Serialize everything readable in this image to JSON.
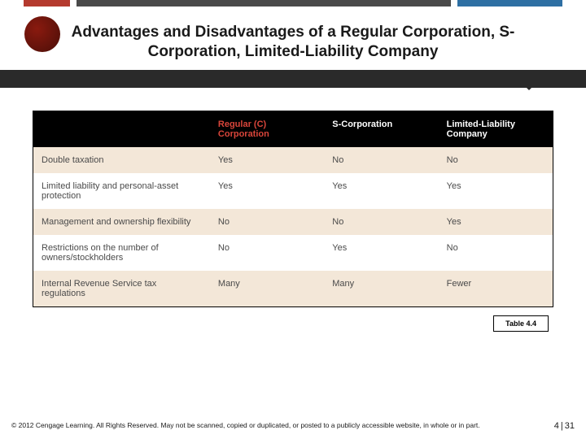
{
  "accent": {
    "segments": [
      {
        "color": "#ffffff",
        "width": "4%"
      },
      {
        "color": "#b43a2e",
        "width": "8%"
      },
      {
        "color": "#ffffff",
        "width": "1%"
      },
      {
        "color": "#4a4a4a",
        "width": "64%"
      },
      {
        "color": "#ffffff",
        "width": "1%"
      },
      {
        "color": "#2e6fa3",
        "width": "18%"
      },
      {
        "color": "#ffffff",
        "width": "4%"
      }
    ]
  },
  "title": "Advantages and Disadvantages of a Regular Corporation, S-Corporation, Limited-Liability Company",
  "table": {
    "columns": [
      {
        "label": "",
        "class": "hcol"
      },
      {
        "label": "Regular (C) Corporation",
        "class": "dcol reg"
      },
      {
        "label": "S-Corporation",
        "class": "dcol"
      },
      {
        "label": "Limited-Liability Company",
        "class": "dcol"
      }
    ],
    "rows": [
      {
        "alt": true,
        "cells": [
          "Double taxation",
          "Yes",
          "No",
          "No"
        ]
      },
      {
        "alt": false,
        "cells": [
          "Limited liability and personal-asset protection",
          "Yes",
          "Yes",
          "Yes"
        ]
      },
      {
        "alt": true,
        "cells": [
          "Management and ownership flexibility",
          "No",
          "No",
          "Yes"
        ]
      },
      {
        "alt": false,
        "cells": [
          "Restrictions on the number of owners/stockholders",
          "No",
          "Yes",
          "No"
        ]
      },
      {
        "alt": true,
        "cells": [
          "Internal Revenue Service tax regulations",
          "Many",
          "Many",
          "Fewer"
        ]
      }
    ],
    "header_bg": "#000000",
    "header_color": "#ffffff",
    "header_accent_color": "#d9453a",
    "row_alt_bg": "#f3e7d8",
    "row_bg": "#ffffff",
    "text_color": "#4a4a4a",
    "border_color": "#000000",
    "font_size": 11
  },
  "caption": "Table 4.4",
  "copyright": "© 2012 Cengage Learning. All Rights Reserved. May not be scanned, copied or duplicated, or posted to a publicly accessible website, in whole or in part.",
  "page": {
    "chapter": "4",
    "sep": "|",
    "num": "31"
  }
}
